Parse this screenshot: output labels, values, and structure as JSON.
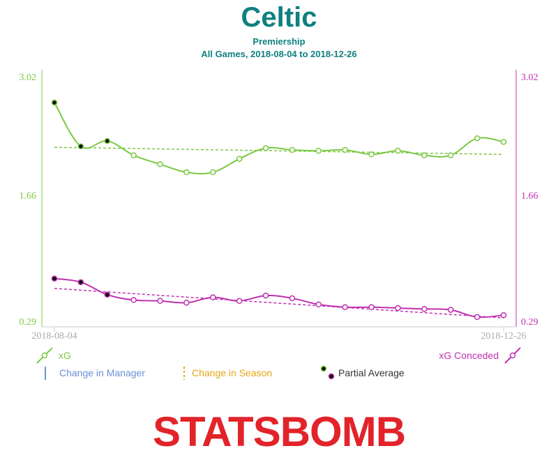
{
  "title": "Celtic",
  "subtitle_1": "Premiership",
  "subtitle_2": "All Games, 2018-08-04 to 2018-12-26",
  "colors": {
    "title": "#0f8080",
    "xg": "#7ac943",
    "conceded": "#c030b0",
    "manager": "#6a8fd8",
    "season": "#e6a817",
    "logo": "#e2232a",
    "axis": "#cccccc"
  },
  "chart_data": {
    "type": "line",
    "x_start": "2018-08-04",
    "x_end": "2018-12-26",
    "ylim": [
      0.29,
      3.02
    ],
    "yticks_left": [
      "3.02",
      "1.66",
      "0.29"
    ],
    "yticks_right": [
      "3.02",
      "1.66",
      "0.29"
    ],
    "partial_count": 3,
    "series": [
      {
        "name": "xG",
        "values": [
          2.73,
          2.24,
          2.3,
          2.14,
          2.04,
          1.95,
          1.95,
          2.1,
          2.22,
          2.2,
          2.19,
          2.2,
          2.15,
          2.19,
          2.14,
          2.14,
          2.33,
          2.29
        ],
        "trend": [
          2.23,
          2.15
        ]
      },
      {
        "name": "xG Conceded",
        "values": [
          0.76,
          0.72,
          0.58,
          0.52,
          0.51,
          0.49,
          0.55,
          0.51,
          0.57,
          0.54,
          0.47,
          0.44,
          0.44,
          0.43,
          0.42,
          0.41,
          0.33,
          0.35
        ],
        "trend": [
          0.65,
          0.32
        ]
      }
    ]
  },
  "legend": {
    "xg": "xG",
    "conceded": "xG Conceded",
    "manager": "Change in Manager",
    "season": "Change in Season",
    "partial": "Partial Average"
  },
  "logo_text": "STATSBOMB"
}
